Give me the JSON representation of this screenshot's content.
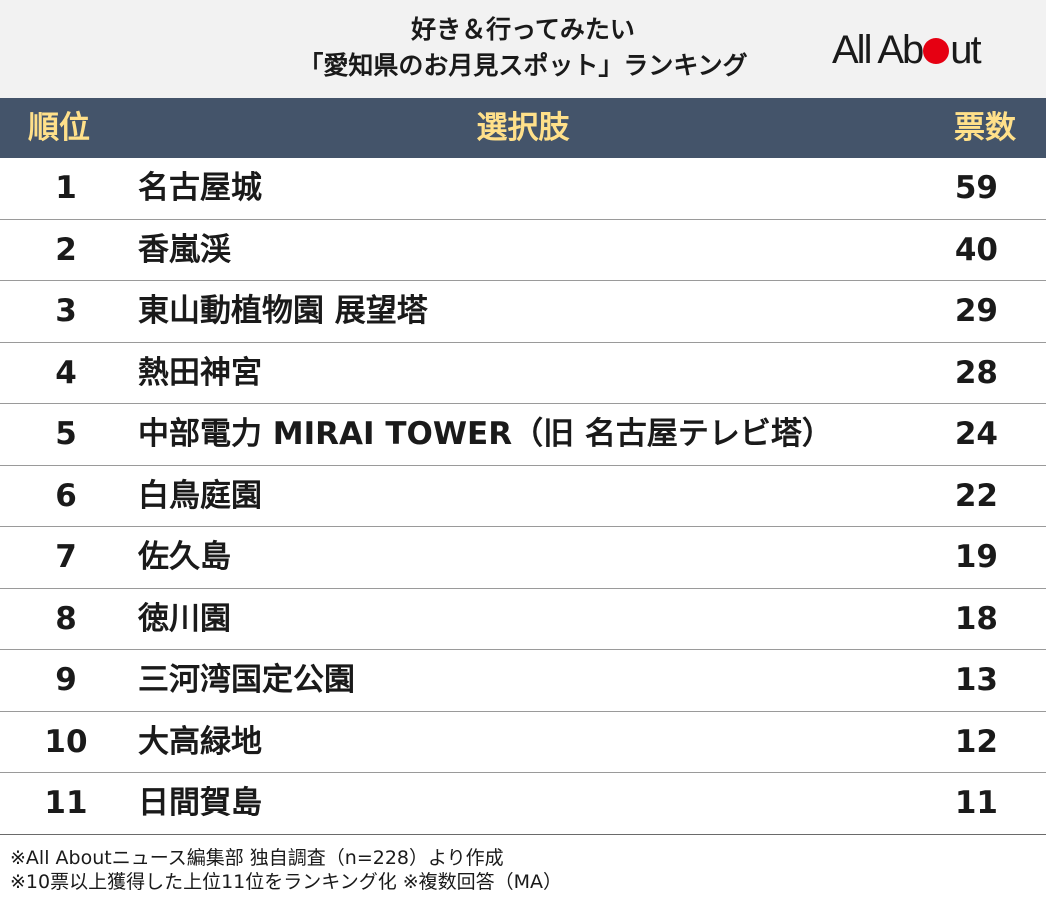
{
  "title": {
    "line1": "好き＆行ってみたい",
    "line2": "「愛知県のお月見スポット」ランキング"
  },
  "logo": {
    "text_left": "All Ab",
    "text_right": "ut",
    "dot_color": "#e60012"
  },
  "table": {
    "headers": {
      "rank": "順位",
      "choice": "選択肢",
      "votes": "票数"
    },
    "rows": [
      {
        "rank": "1",
        "name": "名古屋城",
        "votes": "59"
      },
      {
        "rank": "2",
        "name": "香嵐渓",
        "votes": "40"
      },
      {
        "rank": "3",
        "name": "東山動植物園 展望塔",
        "votes": "29"
      },
      {
        "rank": "4",
        "name": "熱田神宮",
        "votes": "28"
      },
      {
        "rank": "5",
        "name": "中部電力 MIRAI TOWER（旧 名古屋テレビ塔）",
        "votes": "24"
      },
      {
        "rank": "6",
        "name": "白鳥庭園",
        "votes": "22"
      },
      {
        "rank": "7",
        "name": "佐久島",
        "votes": "19"
      },
      {
        "rank": "8",
        "name": "徳川園",
        "votes": "18"
      },
      {
        "rank": "9",
        "name": "三河湾国定公園",
        "votes": "13"
      },
      {
        "rank": "10",
        "name": "大高緑地",
        "votes": "12"
      },
      {
        "rank": "11",
        "name": "日間賀島",
        "votes": "11"
      }
    ]
  },
  "notes": {
    "line1": "※All Aboutニュース編集部 独自調査（n=228）より作成",
    "line2": "※10票以上獲得した上位11位をランキング化 ※複数回答（MA）"
  },
  "colors": {
    "header_bg": "#44546a",
    "header_text": "#ffe08a",
    "title_band": "#f2f2f2"
  }
}
